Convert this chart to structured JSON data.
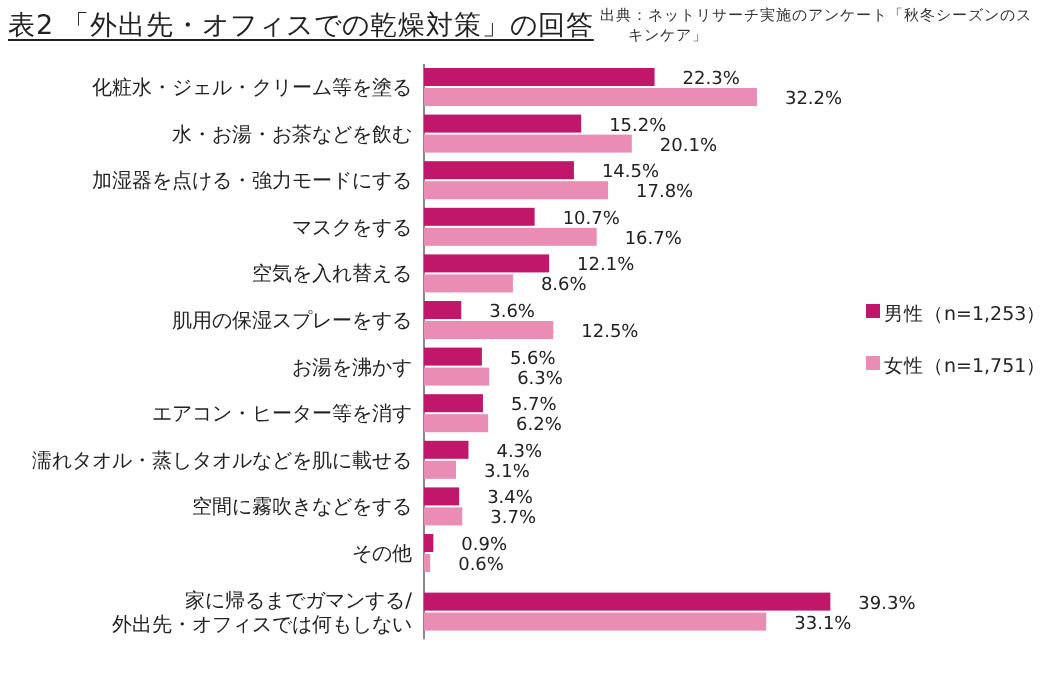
{
  "chart_data": {
    "type": "bar",
    "orientation": "horizontal",
    "title": "表2 「外出先・オフィスでの乾燥対策」の回答",
    "annotations": [
      "出典：ネットリサーチ実施のアンケート「秋冬シーズンのスキンケア」"
    ],
    "categories": [
      "化粧水・ジェル・クリーム等を塗る",
      "水・お湯・お茶などを飲む",
      "加湿器を点ける・強力モードにする",
      "マスクをする",
      "空気を入れ替える",
      "肌用の保湿スプレーをする",
      "お湯を沸かす",
      "エアコン・ヒーター等を消す",
      "濡れタオル・蒸しタオルなどを肌に載せる",
      "空間に霧吹きなどをする",
      "その他",
      "家に帰るまでガマンする/\n外出先・オフィスでは何もしない"
    ],
    "series": [
      {
        "name": "男性（n=1,253）",
        "color": "#c0176b",
        "values": [
          22.3,
          15.2,
          14.5,
          10.7,
          12.1,
          3.6,
          5.6,
          5.7,
          4.3,
          3.4,
          0.9,
          39.3
        ],
        "value_labels": [
          "22.3%",
          "15.2%",
          "14.5%",
          "10.7%",
          "12.1%",
          "3.6%",
          "5.6%",
          "5.7%",
          "4.3%",
          "3.4%",
          "0.9%",
          "39.3%"
        ]
      },
      {
        "name": "女性（n=1,751）",
        "color": "#ea8db5",
        "values": [
          32.2,
          20.1,
          17.8,
          16.7,
          8.6,
          12.5,
          6.3,
          6.2,
          3.1,
          3.7,
          0.6,
          33.1
        ],
        "value_labels": [
          "32.2%",
          "20.1%",
          "17.8%",
          "16.7%",
          "8.6%",
          "12.5%",
          "6.3%",
          "6.2%",
          "3.1%",
          "3.7%",
          "0.6%",
          "33.1%"
        ]
      }
    ],
    "legend": "right"
  }
}
